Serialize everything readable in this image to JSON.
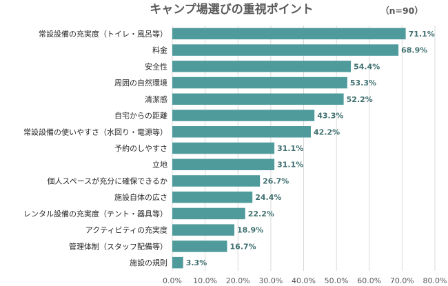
{
  "chart_data": {
    "type": "bar",
    "orientation": "horizontal",
    "title": "キャンプ場選びの重視ポイント",
    "sample_note": "（n=90）",
    "categories": [
      "常設設備の充実度（トイレ・風呂等）",
      "料金",
      "安全性",
      "周囲の自然環境",
      "清潔感",
      "自宅からの距離",
      "常設設備の使いやすさ（水回り・電源等）",
      "予約のしやすさ",
      "立地",
      "個人スペースが充分に確保できるか",
      "施設自体の広さ",
      "レンタル設備の充実度（テント・器具等）",
      "アクティビティの充実度",
      "管理体制（スタッフ配備等）",
      "施設の規則"
    ],
    "values": [
      71.1,
      68.9,
      54.4,
      53.3,
      52.2,
      43.3,
      42.2,
      31.1,
      31.1,
      26.7,
      24.4,
      22.2,
      18.9,
      16.7,
      3.3
    ],
    "value_labels": [
      "71.1%",
      "68.9%",
      "54.4%",
      "53.3%",
      "52.2%",
      "43.3%",
      "42.2%",
      "31.1%",
      "31.1%",
      "26.7%",
      "24.4%",
      "22.2%",
      "18.9%",
      "16.7%",
      "3.3%"
    ],
    "x_ticks": [
      "0.0%",
      "10.0%",
      "20.0%",
      "30.0%",
      "40.0%",
      "50.0%",
      "60.0%",
      "70.0%",
      "80.0%"
    ],
    "xlim": [
      0,
      80
    ],
    "bar_color": "#4f9b9c",
    "value_label_color": "#3f6f70",
    "grid": "vertical",
    "legend": "none"
  }
}
